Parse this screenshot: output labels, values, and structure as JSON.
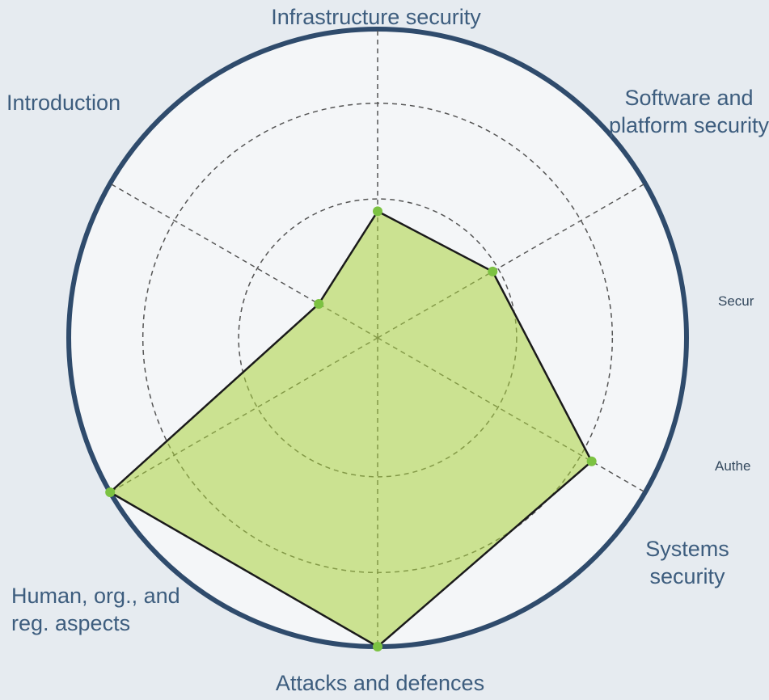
{
  "chart_data": {
    "type": "radar",
    "categories": [
      "Infrastructure security",
      "Software and platform security",
      "Systems security",
      "Attacks and defences",
      "Human, org., and reg. aspects",
      "Introduction"
    ],
    "values": [
      41,
      43,
      80,
      100,
      100,
      22
    ],
    "color": "#a9d23c",
    "rlim": [
      0,
      100
    ],
    "rticks": [
      45,
      76
    ],
    "grid": true,
    "cropped_texts": [
      "Secur",
      "Authe"
    ]
  }
}
